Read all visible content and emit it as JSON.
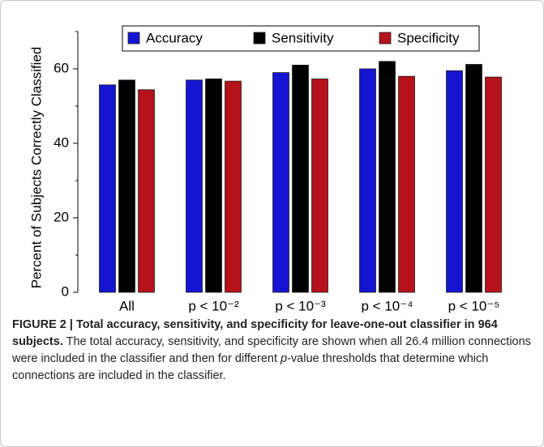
{
  "chart_data": {
    "type": "bar",
    "y_label": "Percent of Subjects Correctly Classified",
    "categories": [
      "All",
      "p < 10⁻²",
      "p < 10⁻³",
      "p < 10⁻⁴",
      "p < 10⁻⁵"
    ],
    "series": [
      {
        "name": "Accuracy",
        "color": "#1414d2",
        "values": [
          55.7,
          57,
          59,
          60,
          59.5
        ]
      },
      {
        "name": "Sensitivity",
        "color": "#000000",
        "values": [
          57,
          57.3,
          61,
          62,
          61.2
        ]
      },
      {
        "name": "Specificity",
        "color": "#b5121b",
        "values": [
          54.4,
          56.7,
          57.3,
          58,
          57.8
        ]
      }
    ],
    "ylim": [
      0,
      70
    ],
    "yticks": [
      0,
      20,
      40,
      60
    ],
    "minor_yticks": [
      10,
      30,
      50,
      70
    ],
    "legend": "top"
  },
  "caption": {
    "label": "FIGURE 2 | Total accuracy, sensitivity, and specificity for leave-one-out classifier in 964 subjects.",
    "text_before": "The total accuracy, sensitivity, and specificity are shown when all 26.4 million connections were included in the classifier and then for different",
    "italic": "p",
    "text_after": "-value thresholds that determine which connections are included in the classifier."
  }
}
